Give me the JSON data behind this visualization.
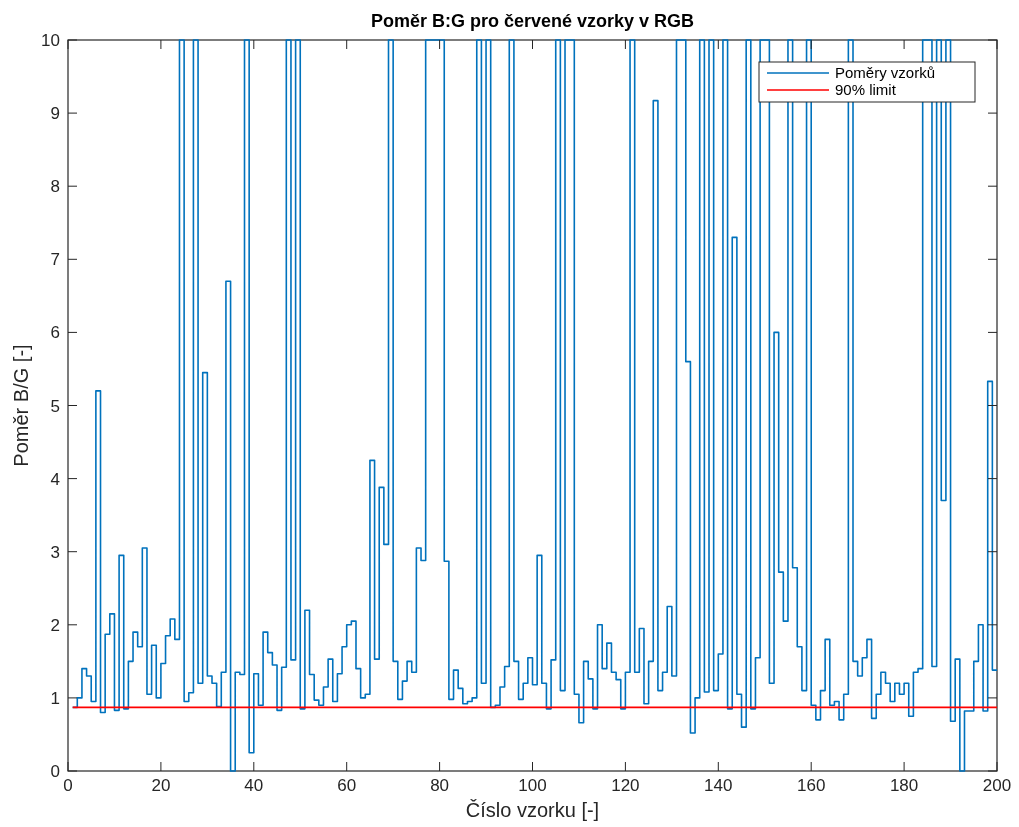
{
  "chart_data": {
    "type": "step",
    "title": "Poměr B:G pro červené vzorky v RGB",
    "xlabel": "Číslo vzorku [-]",
    "ylabel": "Poměr B/G [-]",
    "xlim": [
      0,
      200
    ],
    "xticks": [
      0,
      20,
      40,
      60,
      80,
      100,
      120,
      140,
      160,
      180,
      200
    ],
    "ylim": [
      0,
      10
    ],
    "yticks": [
      0,
      1,
      2,
      3,
      4,
      5,
      6,
      7,
      8,
      9,
      10
    ],
    "grid": false,
    "legend": "top right",
    "line_style": "solid",
    "marker": "none",
    "series": [
      {
        "name": "Poměry vzorků",
        "color": "#0072bd",
        "x": [
          1,
          2,
          3,
          4,
          5,
          6,
          7,
          8,
          9,
          10,
          11,
          12,
          13,
          14,
          15,
          16,
          17,
          18,
          19,
          20,
          21,
          22,
          23,
          24,
          25,
          26,
          27,
          28,
          29,
          30,
          31,
          32,
          33,
          34,
          35,
          36,
          37,
          38,
          39,
          40,
          41,
          42,
          43,
          44,
          45,
          46,
          47,
          48,
          49,
          50,
          51,
          52,
          53,
          54,
          55,
          56,
          57,
          58,
          59,
          60,
          61,
          62,
          63,
          64,
          65,
          66,
          67,
          68,
          69,
          70,
          71,
          72,
          73,
          74,
          75,
          76,
          77,
          78,
          79,
          80,
          81,
          82,
          83,
          84,
          85,
          86,
          87,
          88,
          89,
          90,
          91,
          92,
          93,
          94,
          95,
          96,
          97,
          98,
          99,
          100,
          101,
          102,
          103,
          104,
          105,
          106,
          107,
          108,
          109,
          110,
          111,
          112,
          113,
          114,
          115,
          116,
          117,
          118,
          119,
          120,
          121,
          122,
          123,
          124,
          125,
          126,
          127,
          128,
          129,
          130,
          131,
          132,
          133,
          134,
          135,
          136,
          137,
          138,
          139,
          140,
          141,
          142,
          143,
          144,
          145,
          146,
          147,
          148,
          149,
          150,
          151,
          152,
          153,
          154,
          155,
          156,
          157,
          158,
          159,
          160,
          161,
          162,
          163,
          164,
          165,
          166,
          167,
          168,
          169,
          170,
          171,
          172,
          173,
          174,
          175,
          176,
          177,
          178,
          179,
          180,
          181,
          182,
          183,
          184,
          185,
          186,
          187,
          188,
          189,
          190,
          191,
          192,
          193,
          194,
          195,
          196,
          197,
          198,
          199,
          200
        ],
        "values": [
          0.87,
          1.0,
          1.4,
          1.3,
          0.95,
          5.2,
          0.8,
          1.87,
          2.15,
          0.83,
          2.95,
          0.85,
          1.5,
          1.9,
          1.7,
          3.05,
          1.05,
          1.72,
          1.0,
          1.47,
          1.85,
          2.08,
          1.8,
          10,
          0.95,
          1.07,
          10,
          1.2,
          5.45,
          1.3,
          1.2,
          0.88,
          1.35,
          6.7,
          0,
          1.35,
          1.32,
          10,
          0.25,
          1.33,
          0.9,
          1.9,
          1.62,
          1.45,
          0.83,
          1.42,
          10,
          1.52,
          10,
          0.85,
          2.2,
          1.32,
          0.97,
          0.9,
          1.15,
          1.53,
          0.95,
          1.33,
          1.7,
          2.0,
          2.05,
          1.4,
          1.0,
          1.05,
          4.25,
          1.53,
          3.88,
          3.1,
          10,
          1.5,
          0.98,
          1.23,
          1.5,
          1.35,
          3.05,
          2.88,
          10,
          10,
          10,
          10,
          2.87,
          0.98,
          1.38,
          1.13,
          0.92,
          0.95,
          1.0,
          10,
          1.2,
          10,
          0.87,
          0.9,
          1.15,
          1.43,
          10,
          1.5,
          0.98,
          1.2,
          1.55,
          1.18,
          2.95,
          1.2,
          0.85,
          1.52,
          10,
          1.1,
          10,
          10,
          1.05,
          0.66,
          1.5,
          1.26,
          0.85,
          2.0,
          1.4,
          1.75,
          1.35,
          1.25,
          0.85,
          1.35,
          10,
          1.35,
          1.95,
          0.92,
          1.5,
          9.17,
          1.1,
          1.35,
          2.25,
          1.3,
          10,
          10,
          5.6,
          0.52,
          1.0,
          10,
          1.08,
          10,
          1.1,
          1.6,
          10,
          0.85,
          7.3,
          1.05,
          0.6,
          10,
          0.85,
          1.55,
          10,
          10,
          1.2,
          6.0,
          2.72,
          2.05,
          10,
          2.78,
          1.7,
          1.1,
          10,
          0.9,
          0.7,
          1.1,
          1.8,
          0.9,
          0.95,
          0.7,
          1.05,
          10,
          1.5,
          1.3,
          1.55,
          1.8,
          0.72,
          1.05,
          1.35,
          1.2,
          0.95,
          1.2,
          1.05,
          1.2,
          0.75,
          1.35,
          1.4,
          10,
          10,
          1.43,
          10,
          3.7,
          10,
          0.68,
          1.53,
          0,
          0.82,
          0.82,
          1.5,
          2.0,
          0.82,
          5.33,
          1.38,
          1.38
        ]
      },
      {
        "name": "90% limit",
        "color": "#ff0000",
        "type": "line",
        "x": [
          1,
          200
        ],
        "values": [
          0.87,
          0.87
        ]
      }
    ]
  }
}
